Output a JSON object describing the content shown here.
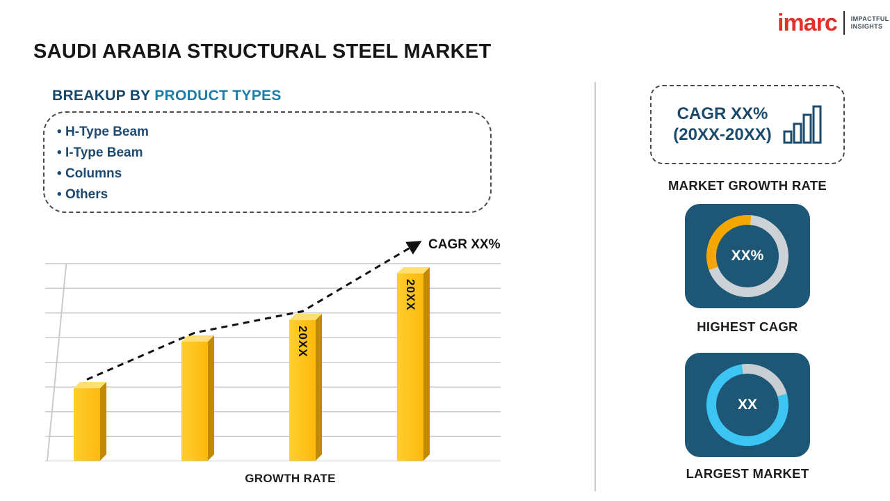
{
  "logo": {
    "brand": "imarc",
    "tagline_line1": "IMPACTFUL",
    "tagline_line2": "INSIGHTS"
  },
  "title": "SAUDI ARABIA STRUCTURAL STEEL MARKET",
  "breakup": {
    "heading_prefix": "BREAKUP BY",
    "heading_highlight": "PRODUCT TYPES",
    "items": [
      "H-Type Beam",
      "I-Type Beam",
      "Columns",
      "Others"
    ]
  },
  "chart_data": {
    "type": "bar",
    "categories": [
      "",
      "",
      "20XX",
      "20XX"
    ],
    "values": [
      37,
      61,
      72,
      96
    ],
    "bar_labels": [
      "",
      "",
      "20XX",
      "20XX"
    ],
    "title": "",
    "xlabel": "GROWTH RATE",
    "ylabel": "",
    "ylim": [
      0,
      100
    ],
    "grid": "horizontal",
    "trend_annotation": "CAGR XX%",
    "trend_style": "dashed-arrow",
    "bar_color": "#FDB90C"
  },
  "right_panel": {
    "cagr_box": {
      "line1": "CAGR XX%",
      "line2": "(20XX-20XX)"
    },
    "market_growth_rate_label": "MARKET GROWTH RATE",
    "highest_cagr": {
      "value": "XX%",
      "label": "HIGHEST CAGR",
      "segment_color": "#F3A700",
      "ring_color": "#CDD2D6"
    },
    "largest_market": {
      "value": "XX",
      "label": "LARGEST MARKET",
      "segment_color": "#C9CED2",
      "ring_color": "#3CC4F2"
    }
  },
  "colors": {
    "accent_navy": "#1B4A6B",
    "accent_teal": "#1A7EA9",
    "brand_red": "#E4302A",
    "card_blue": "#1E5676",
    "bar_yellow": "#FDB90C"
  }
}
